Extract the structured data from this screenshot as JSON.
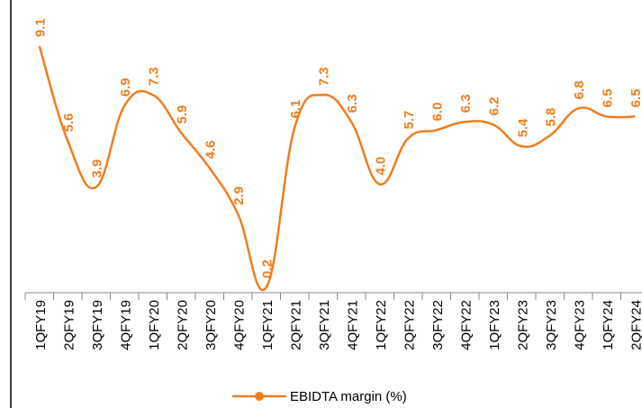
{
  "chart_data": {
    "type": "line",
    "categories": [
      "1QFY19",
      "2QFY19",
      "3QFY19",
      "4QFY19",
      "1QFY20",
      "2QFY20",
      "3QFY20",
      "4QFY20",
      "1QFY21",
      "2QFY21",
      "3QFY21",
      "4QFY21",
      "1QFY22",
      "2QFY22",
      "3QFY22",
      "4QFY22",
      "1QFY23",
      "2QFY23",
      "3QFY23",
      "4QFY23",
      "1QFY24",
      "2QFY24"
    ],
    "series": [
      {
        "name": "EBIDTA margin (%)",
        "color": "#f07d1e",
        "values": [
          9.1,
          5.6,
          3.9,
          6.9,
          7.3,
          5.9,
          4.6,
          2.9,
          0.2,
          6.1,
          7.3,
          6.3,
          4.0,
          5.7,
          6.0,
          6.3,
          6.2,
          5.4,
          5.8,
          6.8,
          6.5,
          6.5
        ],
        "value_labels": [
          "9.1",
          "5.6",
          "3.9",
          "6.9",
          "7.3",
          "5.9",
          "4.6",
          "2.9",
          "0.2",
          "6.1",
          "7.3",
          "6.3",
          "4.0",
          "5.7",
          "6.0",
          "6.3",
          "6.2",
          "5.4",
          "5.8",
          "6.8",
          "6.5",
          "6.5"
        ]
      }
    ],
    "ylim": [
      0,
      10.8
    ],
    "legend": "bottom"
  }
}
